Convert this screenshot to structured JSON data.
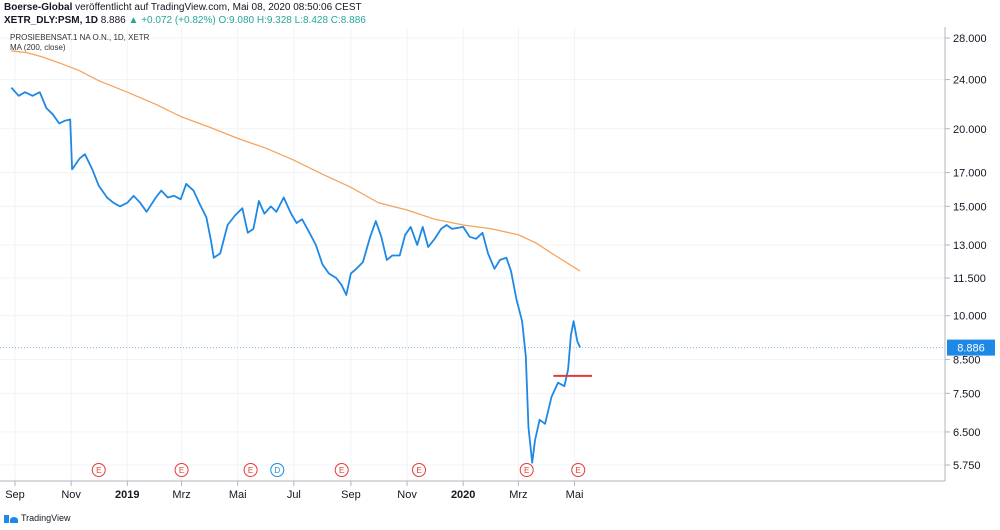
{
  "header": {
    "line1_source": "Boerse-Global",
    "line1_rest": "veröffentlicht auf TradingView.com, Mai 08, 2020 08:50:06 CEST",
    "symbol": "XETR_DLY:PSM, 1D",
    "last": "8.886",
    "change": "+0.072 (+0.82%)",
    "ohlc": "O:9.080 H:9.328 L:8.428 C:8.886"
  },
  "legend": {
    "name": "PROSIEBENSAT.1 NA O.N., 1D, XETR",
    "ma": "MA (200, close)"
  },
  "footer": {
    "brand": "TradingView"
  },
  "colors": {
    "price": "#1e88e5",
    "ma": "#f7a35c",
    "marker": "#e53935",
    "priceline": "#80b3e8"
  },
  "chart_data": {
    "type": "line",
    "scale": "log",
    "y_ticks": [
      "28.000",
      "24.000",
      "20.000",
      "17.000",
      "15.000",
      "13.000",
      "11.500",
      "10.000",
      "8.500",
      "7.500",
      "6.500",
      "5.750"
    ],
    "x_ticks": [
      "Sep",
      "Nov",
      "2019",
      "Mrz",
      "Mai",
      "Jul",
      "Sep",
      "Nov",
      "2020",
      "Mrz",
      "Mai"
    ],
    "last_price_label": "8.886",
    "horizontal_line_value": 8.0,
    "events": [
      {
        "label": "E",
        "date": "2018-12"
      },
      {
        "label": "E",
        "date": "2019-03"
      },
      {
        "label": "E",
        "date": "2019-05"
      },
      {
        "label": "D",
        "date": "2019-06"
      },
      {
        "label": "E",
        "date": "2019-08"
      },
      {
        "label": "E",
        "date": "2019-11"
      },
      {
        "label": "E",
        "date": "2020-03"
      },
      {
        "label": "E",
        "date": "2020-05"
      }
    ],
    "series": [
      {
        "name": "PROSIEBENSAT.1 NA O.N.",
        "points": [
          [
            "2018-08-28",
            23.3
          ],
          [
            "2018-09-05",
            22.6
          ],
          [
            "2018-09-12",
            22.9
          ],
          [
            "2018-09-20",
            22.6
          ],
          [
            "2018-09-28",
            22.9
          ],
          [
            "2018-10-05",
            21.6
          ],
          [
            "2018-10-12",
            21.1
          ],
          [
            "2018-10-19",
            20.4
          ],
          [
            "2018-10-25",
            20.6
          ],
          [
            "2018-10-31",
            20.7
          ],
          [
            "2018-11-02",
            17.2
          ],
          [
            "2018-11-10",
            17.9
          ],
          [
            "2018-11-16",
            18.2
          ],
          [
            "2018-11-24",
            17.2
          ],
          [
            "2018-12-01",
            16.2
          ],
          [
            "2018-12-10",
            15.5
          ],
          [
            "2018-12-17",
            15.2
          ],
          [
            "2018-12-24",
            15.0
          ],
          [
            "2019-01-01",
            15.2
          ],
          [
            "2019-01-08",
            15.6
          ],
          [
            "2019-01-15",
            15.2
          ],
          [
            "2019-01-22",
            14.7
          ],
          [
            "2019-02-01",
            15.5
          ],
          [
            "2019-02-07",
            15.9
          ],
          [
            "2019-02-14",
            15.5
          ],
          [
            "2019-02-21",
            15.6
          ],
          [
            "2019-02-28",
            15.4
          ],
          [
            "2019-03-06",
            16.3
          ],
          [
            "2019-03-14",
            15.9
          ],
          [
            "2019-03-21",
            15.1
          ],
          [
            "2019-03-28",
            14.4
          ],
          [
            "2019-04-02",
            13.2
          ],
          [
            "2019-04-05",
            12.4
          ],
          [
            "2019-04-12",
            12.6
          ],
          [
            "2019-04-20",
            14.0
          ],
          [
            "2019-04-28",
            14.5
          ],
          [
            "2019-05-06",
            14.9
          ],
          [
            "2019-05-12",
            13.6
          ],
          [
            "2019-05-18",
            13.8
          ],
          [
            "2019-05-24",
            15.3
          ],
          [
            "2019-05-30",
            14.6
          ],
          [
            "2019-06-06",
            15.0
          ],
          [
            "2019-06-12",
            14.7
          ],
          [
            "2019-06-20",
            15.5
          ],
          [
            "2019-06-28",
            14.6
          ],
          [
            "2019-07-04",
            14.1
          ],
          [
            "2019-07-10",
            14.3
          ],
          [
            "2019-07-18",
            13.6
          ],
          [
            "2019-07-25",
            13.0
          ],
          [
            "2019-08-01",
            12.1
          ],
          [
            "2019-08-08",
            11.7
          ],
          [
            "2019-08-16",
            11.5
          ],
          [
            "2019-08-22",
            11.2
          ],
          [
            "2019-08-27",
            10.8
          ],
          [
            "2019-09-01",
            11.7
          ],
          [
            "2019-09-07",
            11.9
          ],
          [
            "2019-09-14",
            12.2
          ],
          [
            "2019-09-22",
            13.4
          ],
          [
            "2019-09-28",
            14.2
          ],
          [
            "2019-10-04",
            13.4
          ],
          [
            "2019-10-10",
            12.3
          ],
          [
            "2019-10-16",
            12.5
          ],
          [
            "2019-10-24",
            12.5
          ],
          [
            "2019-10-30",
            13.5
          ],
          [
            "2019-11-05",
            13.9
          ],
          [
            "2019-11-12",
            13.0
          ],
          [
            "2019-11-18",
            13.9
          ],
          [
            "2019-11-24",
            12.9
          ],
          [
            "2019-12-01",
            13.3
          ],
          [
            "2019-12-08",
            13.8
          ],
          [
            "2019-12-14",
            14.0
          ],
          [
            "2019-12-20",
            13.8
          ],
          [
            "2020-01-01",
            13.9
          ],
          [
            "2020-01-08",
            13.4
          ],
          [
            "2020-01-15",
            13.3
          ],
          [
            "2020-01-22",
            13.6
          ],
          [
            "2020-01-28",
            12.6
          ],
          [
            "2020-02-04",
            11.9
          ],
          [
            "2020-02-10",
            12.3
          ],
          [
            "2020-02-17",
            12.4
          ],
          [
            "2020-02-22",
            11.8
          ],
          [
            "2020-02-28",
            10.6
          ],
          [
            "2020-03-05",
            9.8
          ],
          [
            "2020-03-09",
            8.6
          ],
          [
            "2020-03-12",
            6.6
          ],
          [
            "2020-03-16",
            5.8
          ],
          [
            "2020-03-19",
            6.3
          ],
          [
            "2020-03-24",
            6.8
          ],
          [
            "2020-03-30",
            6.7
          ],
          [
            "2020-04-06",
            7.4
          ],
          [
            "2020-04-13",
            7.8
          ],
          [
            "2020-04-20",
            7.7
          ],
          [
            "2020-04-24",
            8.2
          ],
          [
            "2020-04-27",
            9.3
          ],
          [
            "2020-04-30",
            9.8
          ],
          [
            "2020-05-04",
            9.1
          ],
          [
            "2020-05-07",
            8.89
          ]
        ]
      },
      {
        "name": "MA (200, close)",
        "points": [
          [
            "2018-08-28",
            26.7
          ],
          [
            "2018-09-15",
            26.5
          ],
          [
            "2018-10-01",
            26.1
          ],
          [
            "2018-10-20",
            25.5
          ],
          [
            "2018-11-10",
            24.8
          ],
          [
            "2018-12-01",
            23.9
          ],
          [
            "2019-01-01",
            22.9
          ],
          [
            "2019-02-01",
            21.9
          ],
          [
            "2019-03-01",
            20.9
          ],
          [
            "2019-04-01",
            20.1
          ],
          [
            "2019-05-01",
            19.3
          ],
          [
            "2019-06-01",
            18.6
          ],
          [
            "2019-07-01",
            17.8
          ],
          [
            "2019-08-01",
            16.9
          ],
          [
            "2019-09-01",
            16.1
          ],
          [
            "2019-10-01",
            15.2
          ],
          [
            "2019-11-01",
            14.8
          ],
          [
            "2019-12-01",
            14.3
          ],
          [
            "2020-01-01",
            14.0
          ],
          [
            "2020-02-01",
            13.8
          ],
          [
            "2020-03-01",
            13.5
          ],
          [
            "2020-03-20",
            13.1
          ],
          [
            "2020-04-10",
            12.5
          ],
          [
            "2020-05-07",
            11.8
          ]
        ]
      }
    ]
  }
}
